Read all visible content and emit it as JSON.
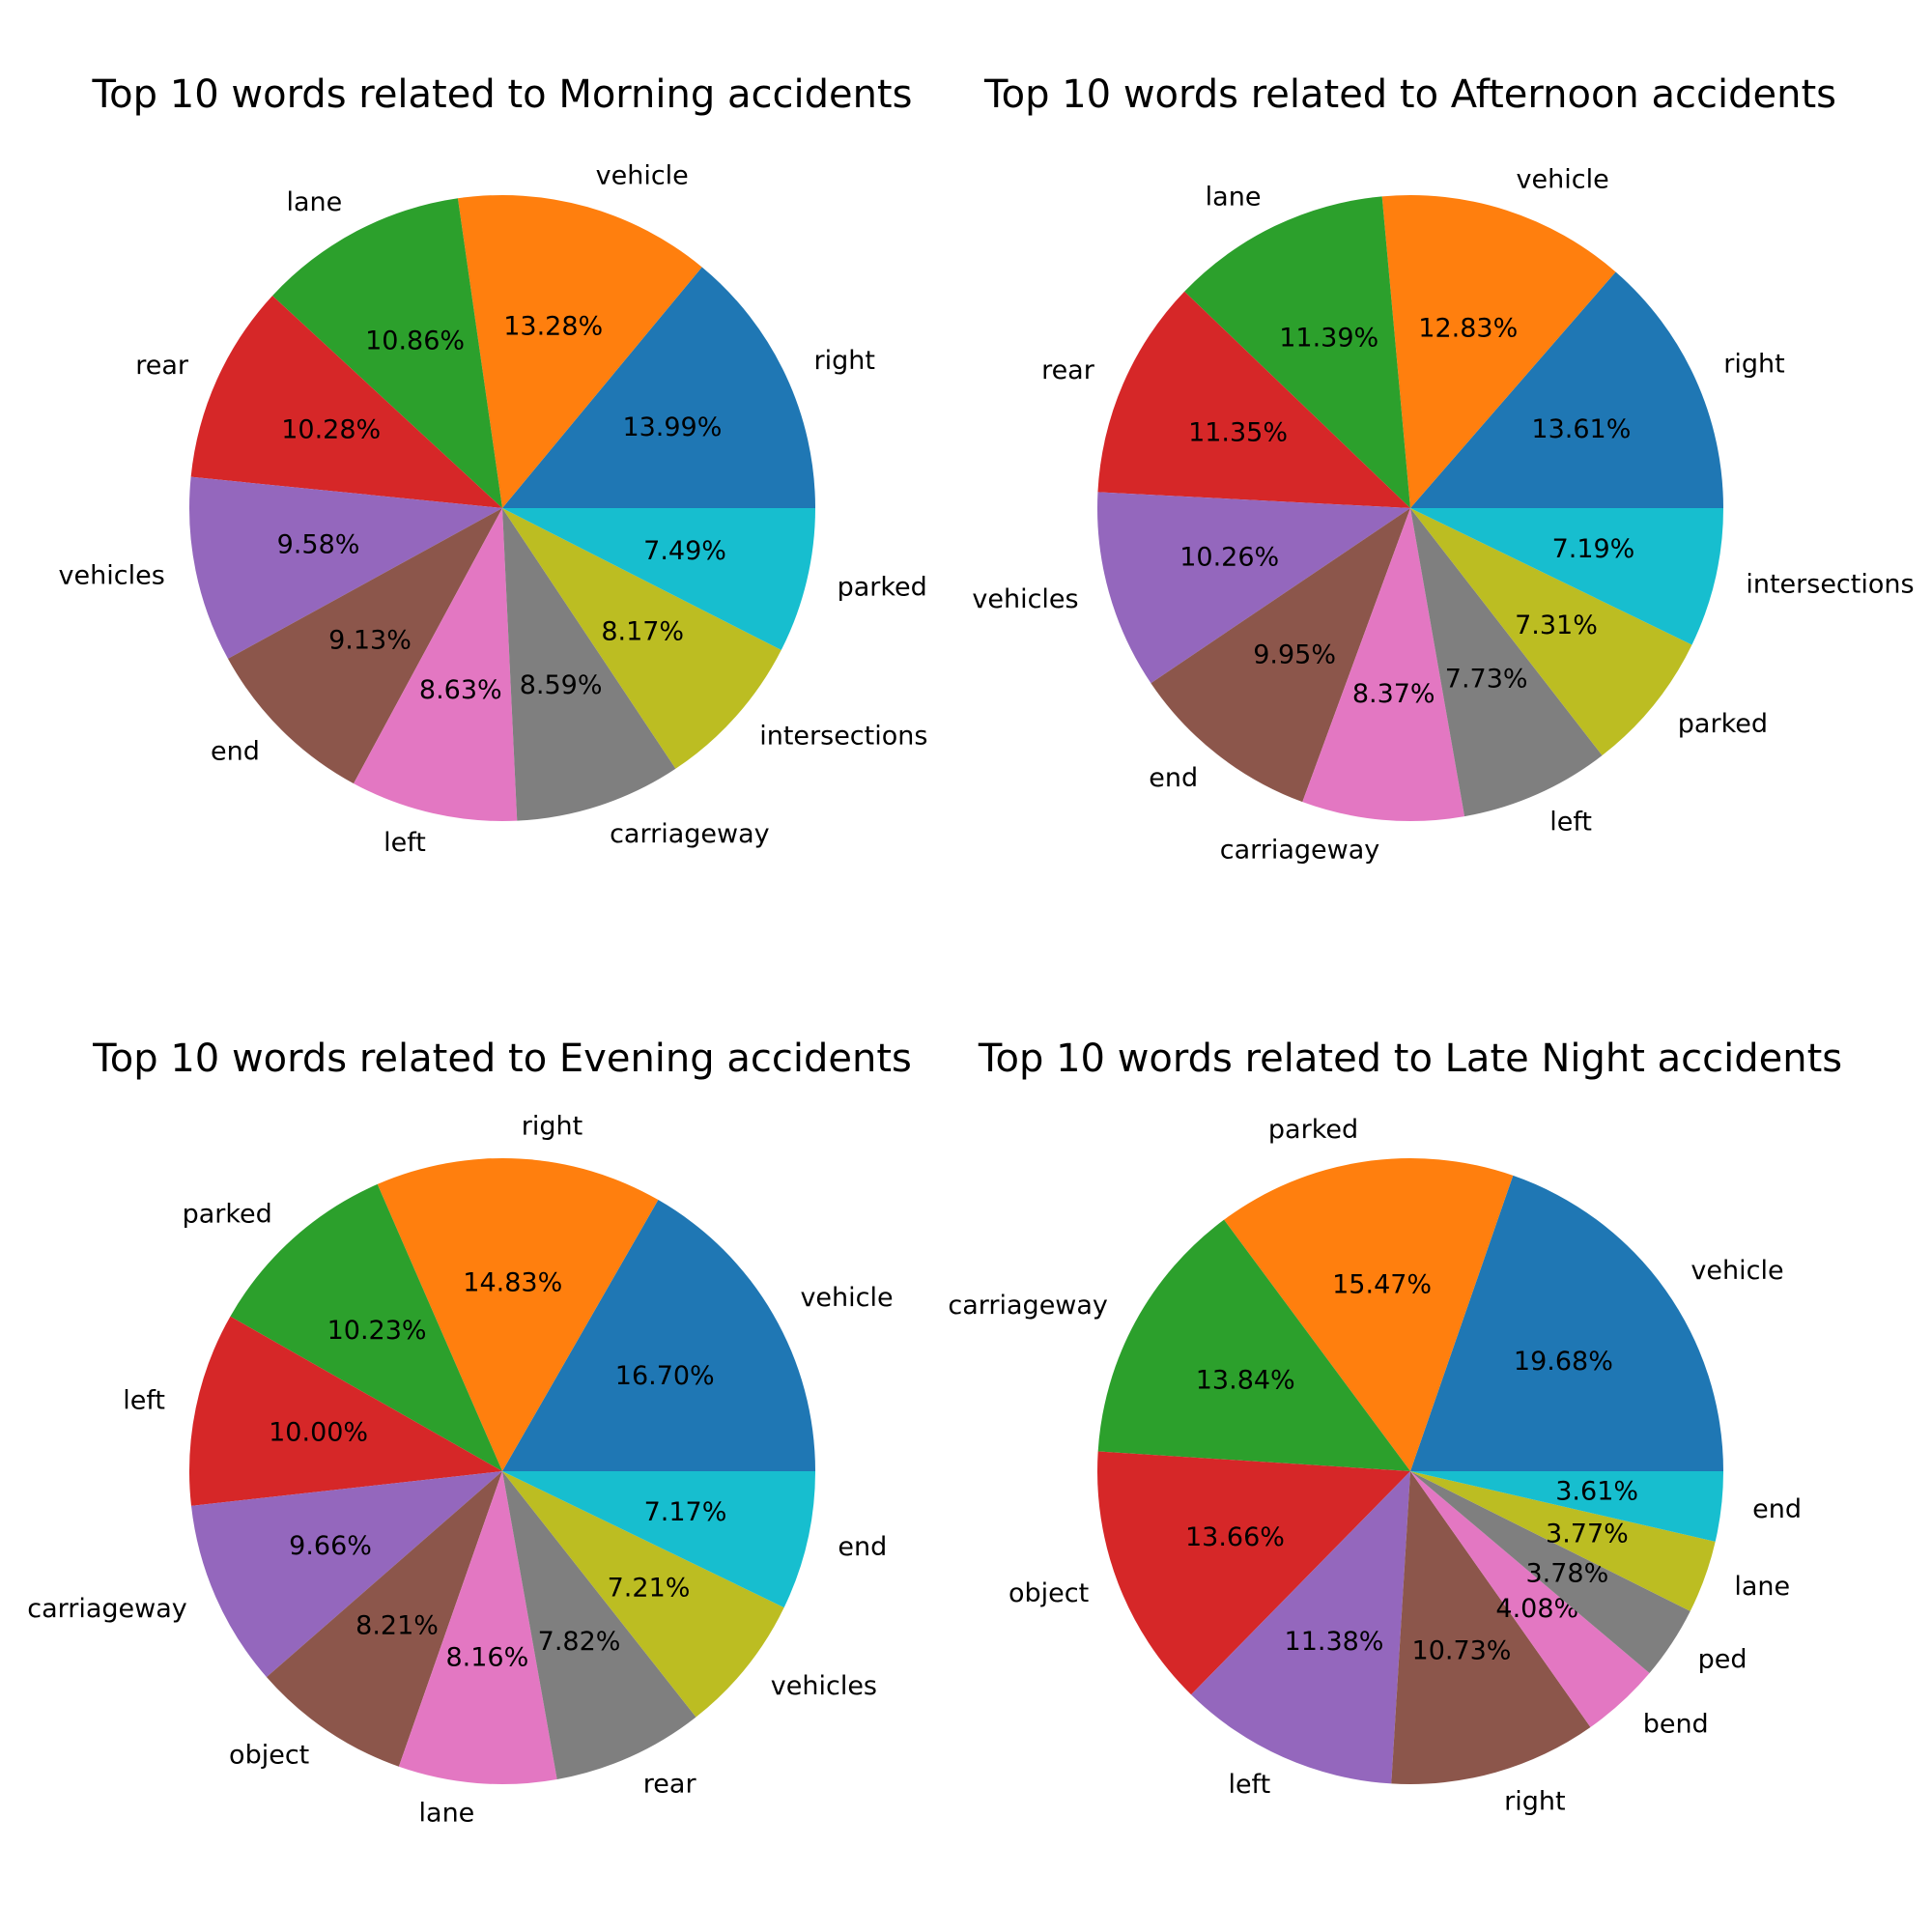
{
  "chart_data": [
    {
      "type": "pie",
      "title": "Top 10 words related to Morning accidents",
      "labels": [
        "right",
        "vehicle",
        "lane",
        "rear",
        "vehicles",
        "end",
        "left",
        "carriageway",
        "intersections",
        "parked"
      ],
      "values": [
        13.99,
        13.28,
        10.86,
        10.28,
        9.58,
        9.13,
        8.63,
        8.59,
        8.17,
        7.49
      ],
      "pct_labels": [
        "13.99%",
        "13.28%",
        "10.86%",
        "10.28%",
        "9.58%",
        "9.13%",
        "8.63%",
        "8.59%",
        "8.17%",
        "7.49%"
      ]
    },
    {
      "type": "pie",
      "title": "Top 10 words related to Afternoon accidents",
      "labels": [
        "right",
        "vehicle",
        "lane",
        "rear",
        "vehicles",
        "end",
        "carriageway",
        "left",
        "parked",
        "intersections"
      ],
      "values": [
        13.61,
        12.83,
        11.39,
        11.35,
        10.26,
        9.95,
        8.37,
        7.73,
        7.31,
        7.19
      ],
      "pct_labels": [
        "13.61%",
        "12.83%",
        "11.39%",
        "11.35%",
        "10.26%",
        "9.95%",
        "8.37%",
        "7.73%",
        "7.31%",
        "7.19%"
      ]
    },
    {
      "type": "pie",
      "title": "Top 10 words related to Evening accidents",
      "labels": [
        "vehicle",
        "right",
        "parked",
        "left",
        "carriageway",
        "object",
        "lane",
        "rear",
        "vehicles",
        "end"
      ],
      "values": [
        16.7,
        14.83,
        10.23,
        10.0,
        9.66,
        8.21,
        8.16,
        7.82,
        7.21,
        7.17
      ],
      "pct_labels": [
        "16.70%",
        "14.83%",
        "10.23%",
        "10.00%",
        "9.66%",
        "8.21%",
        "8.16%",
        "7.82%",
        "7.21%",
        "7.17%"
      ]
    },
    {
      "type": "pie",
      "title": "Top 10 words related to Late Night accidents",
      "labels": [
        "vehicle",
        "parked",
        "carriageway",
        "object",
        "left",
        "right",
        "bend",
        "ped",
        "lane",
        "end"
      ],
      "values": [
        19.68,
        15.47,
        13.84,
        13.66,
        11.38,
        10.73,
        4.08,
        3.78,
        3.77,
        3.61
      ],
      "pct_labels": [
        "19.68%",
        "15.47%",
        "13.84%",
        "13.66%",
        "11.38%",
        "10.73%",
        "4.08%",
        "3.78%",
        "3.77%",
        "3.61%"
      ]
    }
  ],
  "colors": [
    "#1f77b4",
    "#ff7f0e",
    "#2ca02c",
    "#d62728",
    "#9467bd",
    "#8c564b",
    "#e377c2",
    "#7f7f7f",
    "#bcbd22",
    "#17becf"
  ]
}
